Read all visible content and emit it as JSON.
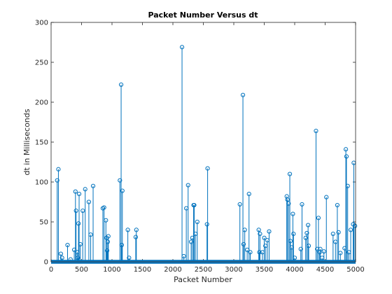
{
  "chart_data": {
    "type": "stem",
    "title": "Packet Number Versus dt",
    "xlabel": "Packet Number",
    "ylabel": "dt in Milliseconds",
    "xlim": [
      0,
      5000
    ],
    "ylim": [
      0,
      300
    ],
    "xticks": [
      0,
      500,
      1000,
      1500,
      2000,
      2500,
      3000,
      3500,
      4000,
      4500,
      5000
    ],
    "yticks": [
      0,
      50,
      100,
      150,
      200,
      250,
      300
    ],
    "grid": false,
    "marker": "circle",
    "series_color": "#0072bd",
    "baseline_value": 0,
    "points": [
      [
        100,
        102
      ],
      [
        120,
        116
      ],
      [
        160,
        10
      ],
      [
        180,
        5
      ],
      [
        270,
        21
      ],
      [
        320,
        3
      ],
      [
        380,
        15
      ],
      [
        400,
        88
      ],
      [
        410,
        64
      ],
      [
        430,
        12
      ],
      [
        440,
        5
      ],
      [
        450,
        48
      ],
      [
        460,
        85
      ],
      [
        480,
        22
      ],
      [
        520,
        64
      ],
      [
        560,
        91
      ],
      [
        620,
        75
      ],
      [
        650,
        34
      ],
      [
        690,
        95
      ],
      [
        850,
        67
      ],
      [
        870,
        68
      ],
      [
        900,
        52
      ],
      [
        910,
        30
      ],
      [
        920,
        14
      ],
      [
        930,
        25
      ],
      [
        940,
        32
      ],
      [
        1130,
        102
      ],
      [
        1150,
        222
      ],
      [
        1160,
        21
      ],
      [
        1170,
        89
      ],
      [
        1260,
        40
      ],
      [
        1280,
        5
      ],
      [
        1390,
        31
      ],
      [
        1400,
        40
      ],
      [
        2150,
        269
      ],
      [
        2180,
        7
      ],
      [
        2220,
        67
      ],
      [
        2250,
        96
      ],
      [
        2300,
        25
      ],
      [
        2320,
        30
      ],
      [
        2340,
        71
      ],
      [
        2350,
        71
      ],
      [
        2370,
        35
      ],
      [
        2400,
        50
      ],
      [
        2560,
        47
      ],
      [
        2570,
        117
      ],
      [
        3100,
        72
      ],
      [
        3150,
        209
      ],
      [
        3160,
        22
      ],
      [
        3180,
        40
      ],
      [
        3220,
        15
      ],
      [
        3250,
        85
      ],
      [
        3270,
        12
      ],
      [
        3410,
        40
      ],
      [
        3420,
        12
      ],
      [
        3430,
        35
      ],
      [
        3470,
        12
      ],
      [
        3500,
        30
      ],
      [
        3520,
        20
      ],
      [
        3550,
        27
      ],
      [
        3580,
        38
      ],
      [
        3870,
        82
      ],
      [
        3880,
        78
      ],
      [
        3900,
        73
      ],
      [
        3920,
        110
      ],
      [
        3930,
        26
      ],
      [
        3950,
        18
      ],
      [
        3970,
        60
      ],
      [
        3980,
        35
      ],
      [
        4000,
        5
      ],
      [
        4100,
        16
      ],
      [
        4120,
        72
      ],
      [
        4180,
        30
      ],
      [
        4200,
        36
      ],
      [
        4220,
        46
      ],
      [
        4230,
        20
      ],
      [
        4350,
        164
      ],
      [
        4370,
        16
      ],
      [
        4390,
        55
      ],
      [
        4410,
        12
      ],
      [
        4420,
        16
      ],
      [
        4450,
        5
      ],
      [
        4480,
        13
      ],
      [
        4520,
        81
      ],
      [
        4630,
        35
      ],
      [
        4670,
        25
      ],
      [
        4700,
        71
      ],
      [
        4720,
        37
      ],
      [
        4750,
        11
      ],
      [
        4820,
        17
      ],
      [
        4840,
        141
      ],
      [
        4850,
        132
      ],
      [
        4870,
        95
      ],
      [
        4890,
        12
      ],
      [
        4920,
        40
      ],
      [
        4960,
        47
      ],
      [
        4970,
        124
      ],
      [
        4990,
        45
      ]
    ]
  }
}
